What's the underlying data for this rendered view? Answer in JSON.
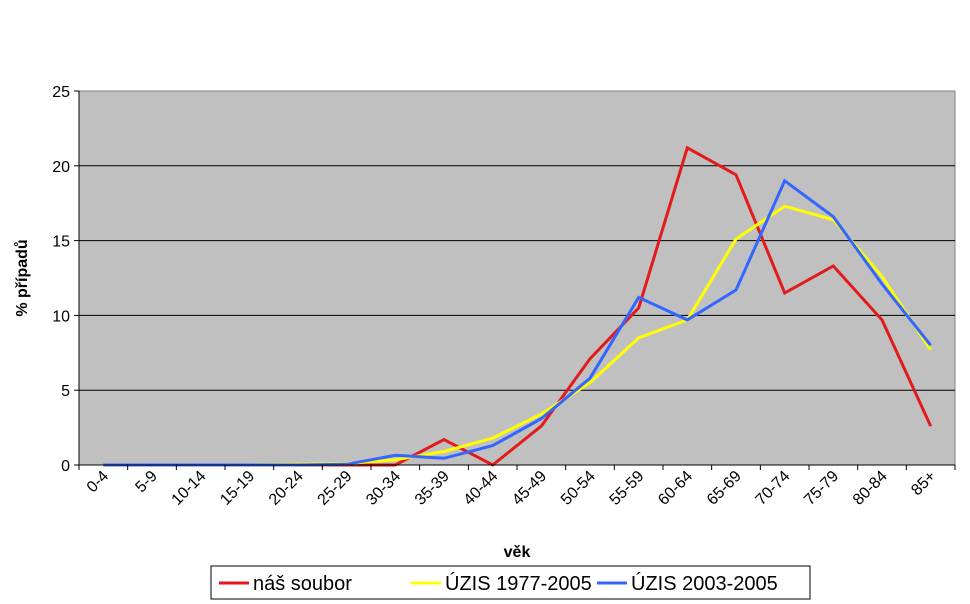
{
  "chart_data": {
    "type": "line",
    "title": "",
    "xlabel": "věk",
    "ylabel": "% případů",
    "ylim": [
      0,
      25
    ],
    "yticks": [
      0,
      5,
      10,
      15,
      20,
      25
    ],
    "grid": "horizontal",
    "plot_background": "#c0c0c0",
    "legend_position": "bottom",
    "categories": [
      "0-4",
      "5-9",
      "10-14",
      "15-19",
      "20-24",
      "25-29",
      "30-34",
      "35-39",
      "40-44",
      "45-49",
      "50-54",
      "55-59",
      "60-64",
      "65-69",
      "70-74",
      "75-79",
      "80-84",
      "85+"
    ],
    "series": [
      {
        "name": "náš soubor",
        "color": "#e31a1c",
        "values": [
          0,
          0,
          0,
          0,
          0,
          0,
          0,
          1.7,
          0,
          2.6,
          7.1,
          10.5,
          21.2,
          19.4,
          11.5,
          13.3,
          9.7,
          2.6
        ]
      },
      {
        "name": "ÚZIS 1977-2005",
        "color": "#ffff00",
        "values": [
          0,
          0,
          0,
          0,
          0.05,
          0.1,
          0.35,
          0.9,
          1.8,
          3.4,
          5.5,
          8.5,
          9.7,
          15.1,
          17.3,
          16.4,
          12.6,
          7.7
        ]
      },
      {
        "name": "ÚZIS 2003-2005",
        "color": "#3366ff",
        "values": [
          0,
          0,
          0,
          0,
          0,
          0.05,
          0.65,
          0.45,
          1.3,
          3.1,
          5.8,
          11.2,
          9.7,
          11.7,
          19.0,
          16.6,
          12.1,
          8.0
        ]
      }
    ]
  }
}
